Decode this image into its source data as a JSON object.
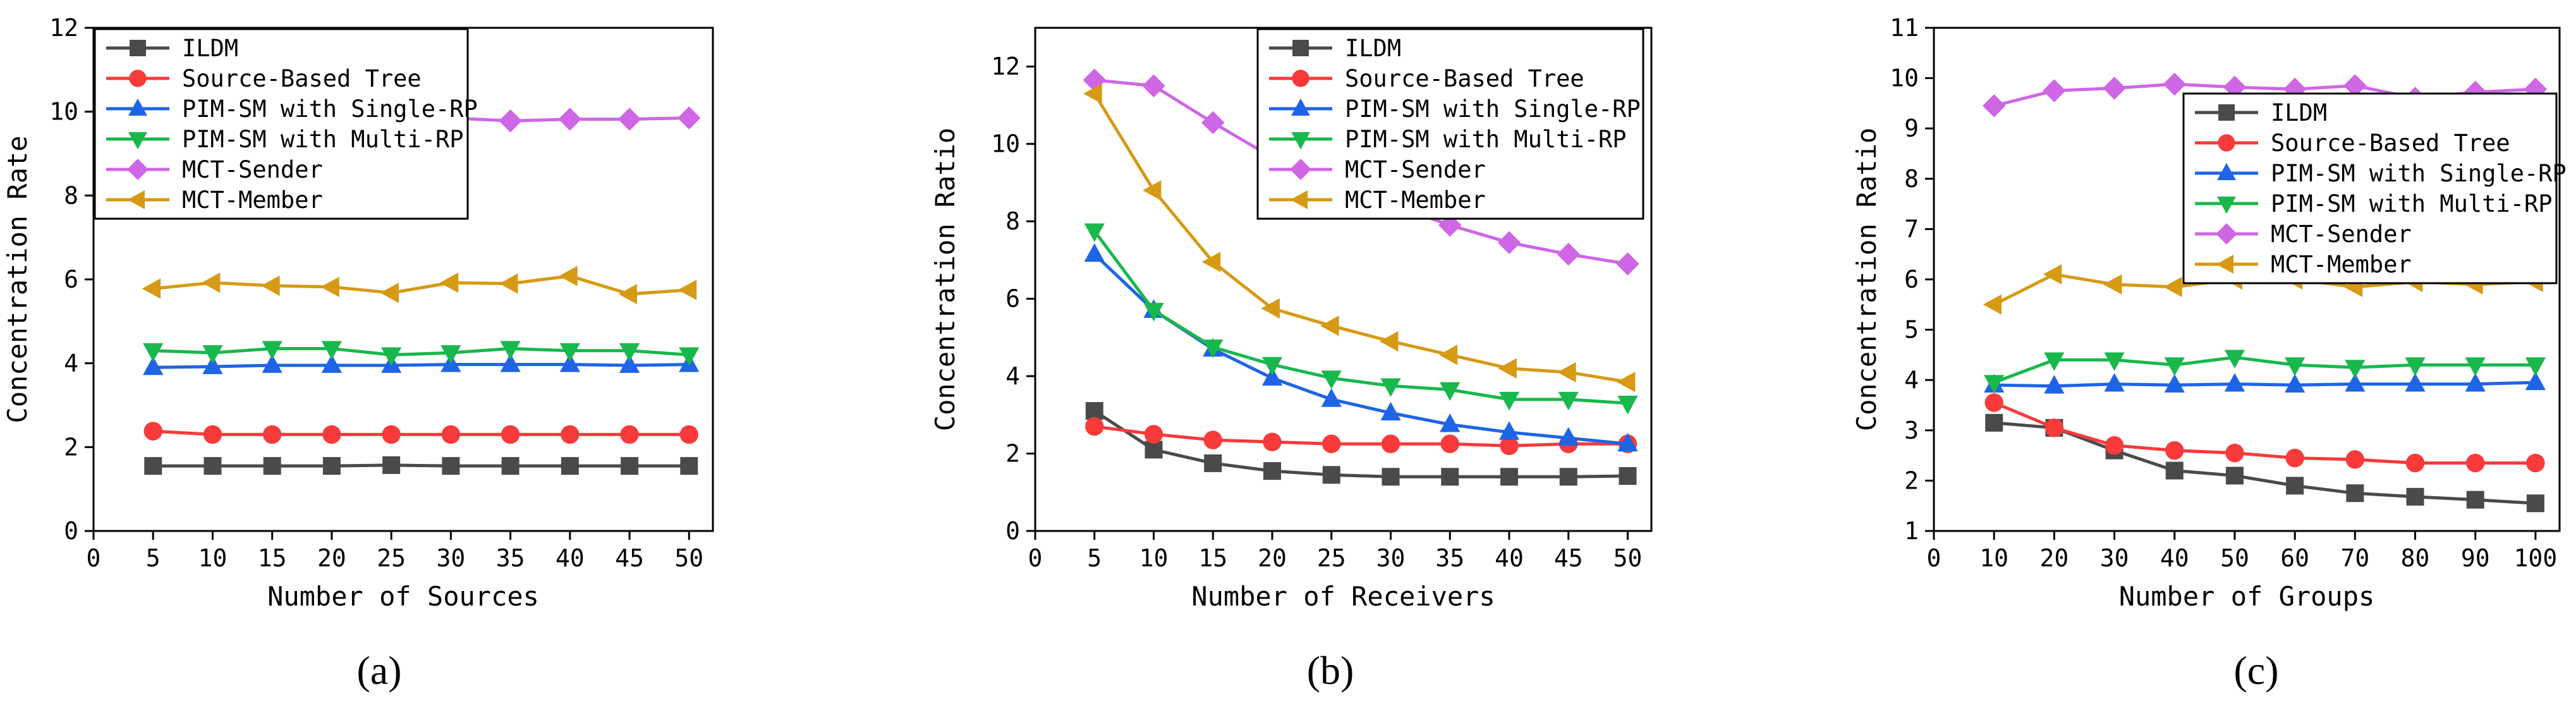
{
  "colors": {
    "ILDM": "#4a4a4a",
    "Source-Based Tree": "#f83a3a",
    "PIM-SM with Single-RP": "#1e64e6",
    "PIM-SM with Multi-RP": "#18b84c",
    "MCT-Sender": "#cf66e6",
    "MCT-Member": "#d69a14"
  },
  "chart_data": [
    {
      "type": "line",
      "panel_label": "(a)",
      "xlabel": "Number of Sources",
      "ylabel": "Concentration Rate",
      "xlim": [
        0,
        52
      ],
      "ylim": [
        0,
        12
      ],
      "xticks": [
        0,
        5,
        10,
        15,
        20,
        25,
        30,
        35,
        40,
        45,
        50
      ],
      "yticks": [
        0,
        2,
        4,
        6,
        8,
        10,
        12
      ],
      "legend_position": "top-left",
      "x": [
        5,
        10,
        15,
        20,
        25,
        30,
        35,
        40,
        45,
        50
      ],
      "series": [
        {
          "name": "ILDM",
          "marker": "square",
          "values": [
            1.55,
            1.55,
            1.55,
            1.55,
            1.57,
            1.55,
            1.55,
            1.55,
            1.55,
            1.55
          ]
        },
        {
          "name": "Source-Based Tree",
          "marker": "circle",
          "values": [
            2.38,
            2.3,
            2.3,
            2.3,
            2.3,
            2.3,
            2.3,
            2.3,
            2.3,
            2.3
          ]
        },
        {
          "name": "PIM-SM with Single-RP",
          "marker": "triangle-up",
          "values": [
            3.9,
            3.92,
            3.95,
            3.95,
            3.95,
            3.97,
            3.97,
            3.97,
            3.95,
            3.97
          ]
        },
        {
          "name": "PIM-SM with Multi-RP",
          "marker": "triangle-down",
          "values": [
            4.3,
            4.25,
            4.35,
            4.35,
            4.2,
            4.25,
            4.35,
            4.3,
            4.3,
            4.2
          ]
        },
        {
          "name": "MCT-Sender",
          "marker": "diamond",
          "values": [
            9.85,
            9.8,
            9.88,
            9.8,
            9.72,
            9.85,
            9.78,
            9.82,
            9.82,
            9.85
          ]
        },
        {
          "name": "MCT-Member",
          "marker": "triangle-left",
          "values": [
            5.78,
            5.92,
            5.85,
            5.82,
            5.68,
            5.92,
            5.9,
            6.08,
            5.65,
            5.75
          ]
        }
      ]
    },
    {
      "type": "line",
      "panel_label": "(b)",
      "xlabel": "Number of Receivers",
      "ylabel": "Concentration Ratio",
      "xlim": [
        0,
        52
      ],
      "ylim": [
        0,
        13
      ],
      "xticks": [
        0,
        5,
        10,
        15,
        20,
        25,
        30,
        35,
        40,
        45,
        50
      ],
      "yticks": [
        0,
        2,
        4,
        6,
        8,
        10,
        12
      ],
      "legend_position": "top-right",
      "x": [
        5,
        10,
        15,
        20,
        25,
        30,
        35,
        40,
        45,
        50
      ],
      "series": [
        {
          "name": "ILDM",
          "marker": "square",
          "values": [
            3.1,
            2.1,
            1.75,
            1.55,
            1.45,
            1.4,
            1.4,
            1.4,
            1.4,
            1.42
          ]
        },
        {
          "name": "Source-Based Tree",
          "marker": "circle",
          "values": [
            2.7,
            2.5,
            2.35,
            2.3,
            2.25,
            2.25,
            2.25,
            2.2,
            2.25,
            2.25
          ]
        },
        {
          "name": "PIM-SM with Single-RP",
          "marker": "triangle-up",
          "values": [
            7.15,
            5.7,
            4.7,
            3.95,
            3.4,
            3.05,
            2.75,
            2.55,
            2.4,
            2.25
          ]
        },
        {
          "name": "PIM-SM with Multi-RP",
          "marker": "triangle-down",
          "values": [
            7.75,
            5.7,
            4.75,
            4.3,
            3.95,
            3.75,
            3.65,
            3.4,
            3.4,
            3.3
          ]
        },
        {
          "name": "MCT-Sender",
          "marker": "diamond",
          "values": [
            11.65,
            11.5,
            10.55,
            9.65,
            9.2,
            8.45,
            7.9,
            7.45,
            7.15,
            6.9
          ]
        },
        {
          "name": "MCT-Member",
          "marker": "triangle-left",
          "values": [
            11.3,
            8.8,
            6.95,
            5.75,
            5.3,
            4.9,
            4.55,
            4.2,
            4.1,
            3.85
          ]
        }
      ]
    },
    {
      "type": "line",
      "panel_label": "(c)",
      "xlabel": "Number of Groups",
      "ylabel": "Concentration Ratio",
      "xlim": [
        0,
        104
      ],
      "ylim": [
        1,
        11
      ],
      "xticks": [
        0,
        10,
        20,
        30,
        40,
        50,
        60,
        70,
        80,
        90,
        100
      ],
      "yticks": [
        1,
        2,
        3,
        4,
        5,
        6,
        7,
        8,
        9,
        10,
        11
      ],
      "legend_position": "top-right",
      "x": [
        10,
        20,
        30,
        40,
        50,
        60,
        70,
        80,
        90,
        100
      ],
      "series": [
        {
          "name": "ILDM",
          "marker": "square",
          "values": [
            3.15,
            3.05,
            2.6,
            2.2,
            2.1,
            1.9,
            1.75,
            1.68,
            1.62,
            1.55
          ]
        },
        {
          "name": "Source-Based Tree",
          "marker": "circle",
          "values": [
            3.55,
            3.05,
            2.7,
            2.6,
            2.55,
            2.45,
            2.42,
            2.35,
            2.35,
            2.35
          ]
        },
        {
          "name": "PIM-SM with Single-RP",
          "marker": "triangle-up",
          "values": [
            3.9,
            3.88,
            3.92,
            3.9,
            3.92,
            3.9,
            3.92,
            3.92,
            3.92,
            3.95
          ]
        },
        {
          "name": "PIM-SM with Multi-RP",
          "marker": "triangle-down",
          "values": [
            3.95,
            4.4,
            4.4,
            4.3,
            4.45,
            4.3,
            4.25,
            4.3,
            4.3,
            4.3
          ]
        },
        {
          "name": "MCT-Sender",
          "marker": "diamond",
          "values": [
            9.45,
            9.75,
            9.8,
            9.88,
            9.82,
            9.78,
            9.85,
            9.6,
            9.72,
            9.78
          ]
        },
        {
          "name": "MCT-Member",
          "marker": "triangle-left",
          "values": [
            5.5,
            6.1,
            5.9,
            5.85,
            6.0,
            6.0,
            5.85,
            5.95,
            5.9,
            5.95
          ]
        }
      ]
    }
  ]
}
